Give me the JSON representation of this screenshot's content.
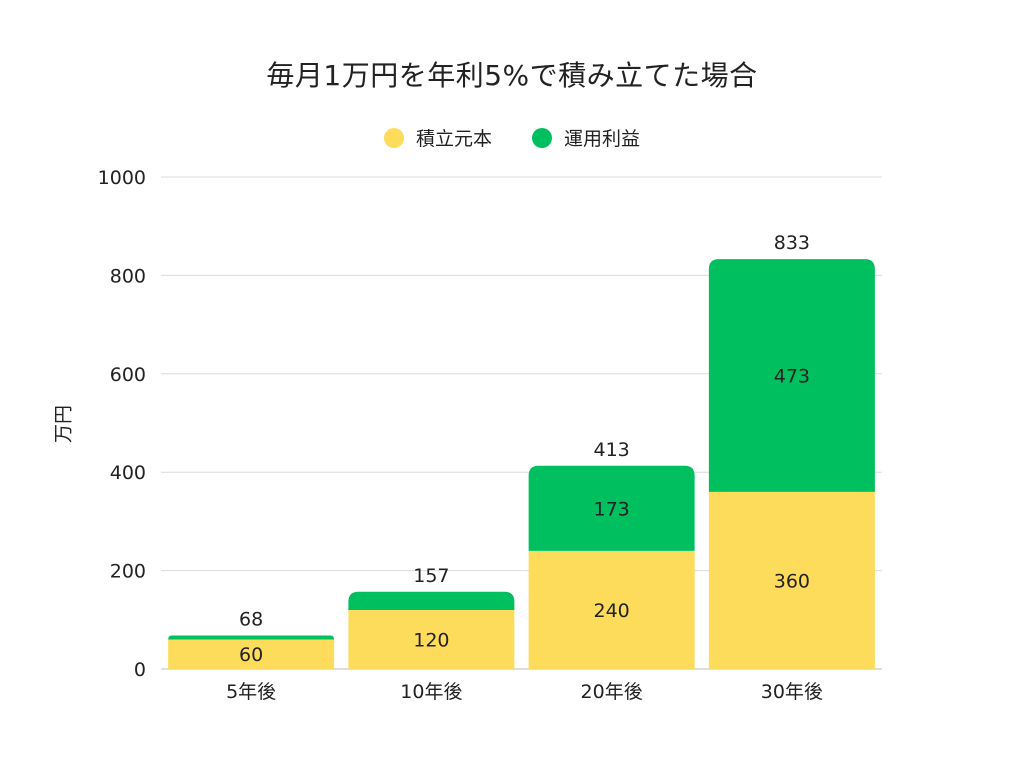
{
  "chart_data": {
    "type": "bar",
    "stacked": true,
    "title": "毎月1万円を年利5%で積み立てた場合",
    "xlabel": "",
    "ylabel": "万円",
    "ylim": [
      0,
      1000
    ],
    "yticks": [
      0,
      200,
      400,
      600,
      800,
      1000
    ],
    "grid": true,
    "legend_position": "top-center",
    "categories": [
      "5年後",
      "10年後",
      "20年後",
      "30年後"
    ],
    "series": [
      {
        "name": "積立元本",
        "color": "#FDDC5C",
        "values": [
          60,
          120,
          240,
          360
        ]
      },
      {
        "name": "運用利益",
        "color": "#00BF5F",
        "values": [
          8,
          37,
          173,
          473
        ]
      }
    ],
    "totals": [
      68,
      157,
      413,
      833
    ]
  }
}
